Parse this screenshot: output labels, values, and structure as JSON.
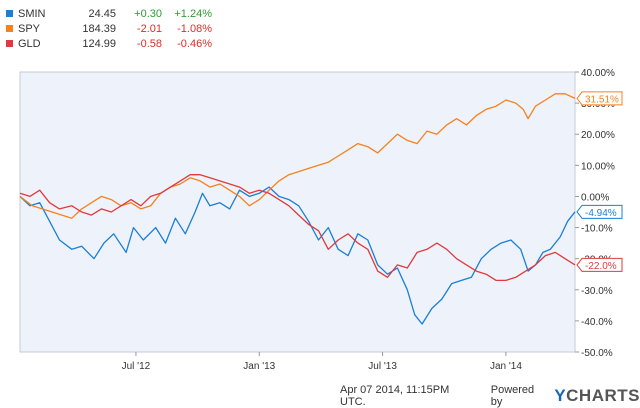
{
  "legend": [
    {
      "ticker": "SMIN",
      "price": "24.45",
      "change": "+0.30",
      "pct": "+1.24%",
      "color": "#1a7fd6",
      "change_color": "#2e9c2e"
    },
    {
      "ticker": "SPY",
      "price": "184.39",
      "change": "-2.01",
      "pct": "-1.08%",
      "color": "#f5821f",
      "change_color": "#d93025"
    },
    {
      "ticker": "GLD",
      "price": "124.99",
      "change": "-0.58",
      "pct": "-0.46%",
      "color": "#e03a3e",
      "change_color": "#d93025"
    }
  ],
  "footer": {
    "timestamp": "Apr 07 2014, 11:15PM UTC.",
    "powered_by": "Powered by",
    "logo_y": "Y",
    "logo_rest": "CHARTS"
  },
  "chart_data": {
    "type": "line",
    "x_ticks": [
      "Jul '12",
      "Jan '13",
      "Jul '13",
      "Jan '14"
    ],
    "y_ticks": [
      "40.00%",
      "30.00%",
      "20.00%",
      "10.00%",
      "0.00%",
      "-10.0%",
      "-20.0%",
      "-30.0%",
      "-40.0%",
      "-50.0%"
    ],
    "ylim": [
      -50,
      40
    ],
    "xlim": [
      2012.03,
      2014.28
    ],
    "grid": false,
    "series": [
      {
        "name": "SMIN",
        "color": "#1a7fd6",
        "end_label": "-4.94%",
        "points": [
          [
            2012.03,
            0
          ],
          [
            2012.07,
            -3
          ],
          [
            2012.11,
            -2
          ],
          [
            2012.15,
            -8
          ],
          [
            2012.19,
            -14
          ],
          [
            2012.24,
            -17
          ],
          [
            2012.28,
            -16
          ],
          [
            2012.33,
            -20
          ],
          [
            2012.37,
            -15
          ],
          [
            2012.41,
            -12
          ],
          [
            2012.46,
            -18
          ],
          [
            2012.49,
            -10
          ],
          [
            2012.53,
            -14
          ],
          [
            2012.58,
            -10
          ],
          [
            2012.62,
            -15
          ],
          [
            2012.66,
            -7
          ],
          [
            2012.7,
            -12
          ],
          [
            2012.74,
            -5
          ],
          [
            2012.77,
            1
          ],
          [
            2012.8,
            -3
          ],
          [
            2012.84,
            -2
          ],
          [
            2012.88,
            -4
          ],
          [
            2012.92,
            2
          ],
          [
            2012.96,
            0
          ],
          [
            2013.0,
            1
          ],
          [
            2013.04,
            3
          ],
          [
            2013.08,
            0
          ],
          [
            2013.12,
            -1
          ],
          [
            2013.16,
            -3
          ],
          [
            2013.2,
            -8
          ],
          [
            2013.24,
            -14
          ],
          [
            2013.28,
            -10
          ],
          [
            2013.32,
            -17
          ],
          [
            2013.36,
            -19
          ],
          [
            2013.4,
            -12
          ],
          [
            2013.44,
            -14
          ],
          [
            2013.48,
            -22
          ],
          [
            2013.52,
            -25
          ],
          [
            2013.56,
            -23
          ],
          [
            2013.6,
            -30
          ],
          [
            2013.63,
            -38
          ],
          [
            2013.66,
            -41
          ],
          [
            2013.7,
            -36
          ],
          [
            2013.74,
            -33
          ],
          [
            2013.78,
            -28
          ],
          [
            2013.82,
            -27
          ],
          [
            2013.86,
            -26
          ],
          [
            2013.9,
            -20
          ],
          [
            2013.94,
            -17
          ],
          [
            2013.98,
            -15
          ],
          [
            2014.02,
            -14
          ],
          [
            2014.06,
            -17
          ],
          [
            2014.09,
            -24
          ],
          [
            2014.12,
            -22
          ],
          [
            2014.15,
            -18
          ],
          [
            2014.18,
            -17
          ],
          [
            2014.22,
            -13
          ],
          [
            2014.25,
            -8
          ],
          [
            2014.28,
            -4.94
          ]
        ]
      },
      {
        "name": "SPY",
        "color": "#f5821f",
        "end_label": "31.51%",
        "points": [
          [
            2012.03,
            0
          ],
          [
            2012.08,
            -3
          ],
          [
            2012.12,
            -4
          ],
          [
            2012.16,
            -5
          ],
          [
            2012.2,
            -6
          ],
          [
            2012.24,
            -7
          ],
          [
            2012.28,
            -4
          ],
          [
            2012.32,
            -2
          ],
          [
            2012.36,
            0
          ],
          [
            2012.4,
            -1
          ],
          [
            2012.44,
            -3
          ],
          [
            2012.48,
            -2
          ],
          [
            2012.52,
            -4
          ],
          [
            2012.56,
            -3
          ],
          [
            2012.6,
            1
          ],
          [
            2012.64,
            3
          ],
          [
            2012.68,
            4
          ],
          [
            2012.72,
            6
          ],
          [
            2012.76,
            5
          ],
          [
            2012.8,
            3
          ],
          [
            2012.84,
            4
          ],
          [
            2012.88,
            2
          ],
          [
            2012.92,
            0
          ],
          [
            2012.96,
            -3
          ],
          [
            2013.0,
            -1
          ],
          [
            2013.04,
            2
          ],
          [
            2013.08,
            5
          ],
          [
            2013.12,
            7
          ],
          [
            2013.16,
            8
          ],
          [
            2013.2,
            9
          ],
          [
            2013.24,
            10
          ],
          [
            2013.28,
            11
          ],
          [
            2013.32,
            13
          ],
          [
            2013.36,
            15
          ],
          [
            2013.4,
            17
          ],
          [
            2013.44,
            16
          ],
          [
            2013.48,
            14
          ],
          [
            2013.52,
            17
          ],
          [
            2013.56,
            20
          ],
          [
            2013.6,
            18
          ],
          [
            2013.64,
            17
          ],
          [
            2013.68,
            21
          ],
          [
            2013.72,
            20
          ],
          [
            2013.76,
            23
          ],
          [
            2013.8,
            25
          ],
          [
            2013.84,
            23
          ],
          [
            2013.88,
            26
          ],
          [
            2013.92,
            28
          ],
          [
            2013.96,
            29
          ],
          [
            2014.0,
            31
          ],
          [
            2014.04,
            30
          ],
          [
            2014.07,
            28
          ],
          [
            2014.09,
            25
          ],
          [
            2014.12,
            29
          ],
          [
            2014.16,
            31
          ],
          [
            2014.2,
            33
          ],
          [
            2014.24,
            33
          ],
          [
            2014.28,
            31.51
          ]
        ]
      },
      {
        "name": "GLD",
        "color": "#e03a3e",
        "end_label": "-22.0%",
        "points": [
          [
            2012.03,
            1
          ],
          [
            2012.07,
            0
          ],
          [
            2012.11,
            2
          ],
          [
            2012.15,
            -2
          ],
          [
            2012.19,
            -4
          ],
          [
            2012.24,
            -3
          ],
          [
            2012.28,
            -5
          ],
          [
            2012.32,
            -6
          ],
          [
            2012.36,
            -4
          ],
          [
            2012.4,
            -5
          ],
          [
            2012.44,
            -3
          ],
          [
            2012.48,
            -1
          ],
          [
            2012.52,
            -3
          ],
          [
            2012.56,
            0
          ],
          [
            2012.6,
            1
          ],
          [
            2012.64,
            3
          ],
          [
            2012.68,
            5
          ],
          [
            2012.72,
            7
          ],
          [
            2012.76,
            7
          ],
          [
            2012.8,
            6
          ],
          [
            2012.84,
            5
          ],
          [
            2012.88,
            4
          ],
          [
            2012.92,
            3
          ],
          [
            2012.96,
            1
          ],
          [
            2013.0,
            2
          ],
          [
            2013.04,
            1
          ],
          [
            2013.08,
            -1
          ],
          [
            2013.12,
            -3
          ],
          [
            2013.16,
            -6
          ],
          [
            2013.2,
            -9
          ],
          [
            2013.24,
            -11
          ],
          [
            2013.28,
            -17
          ],
          [
            2013.32,
            -14
          ],
          [
            2013.36,
            -12
          ],
          [
            2013.4,
            -15
          ],
          [
            2013.44,
            -17
          ],
          [
            2013.48,
            -24
          ],
          [
            2013.52,
            -26
          ],
          [
            2013.56,
            -22
          ],
          [
            2013.6,
            -23
          ],
          [
            2013.64,
            -18
          ],
          [
            2013.68,
            -17
          ],
          [
            2013.72,
            -15
          ],
          [
            2013.76,
            -17
          ],
          [
            2013.8,
            -20
          ],
          [
            2013.84,
            -22
          ],
          [
            2013.88,
            -24
          ],
          [
            2013.92,
            -25
          ],
          [
            2013.96,
            -27
          ],
          [
            2014.0,
            -27
          ],
          [
            2014.04,
            -26
          ],
          [
            2014.08,
            -24
          ],
          [
            2014.12,
            -22
          ],
          [
            2014.16,
            -19
          ],
          [
            2014.2,
            -18
          ],
          [
            2014.24,
            -20
          ],
          [
            2014.28,
            -22
          ]
        ]
      }
    ]
  }
}
